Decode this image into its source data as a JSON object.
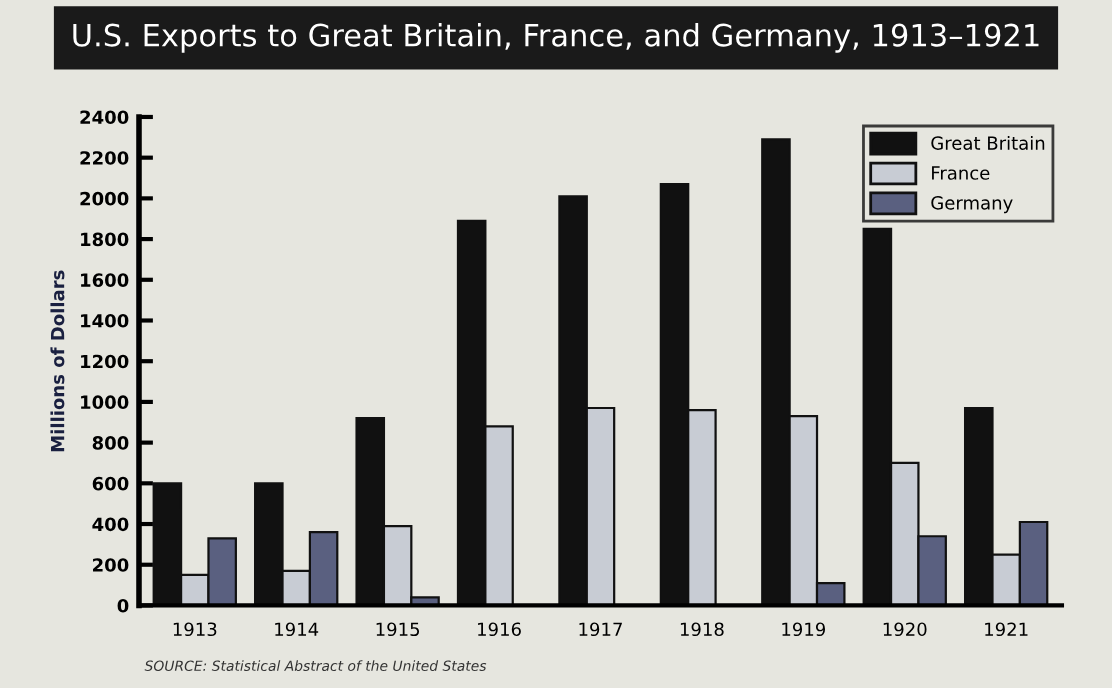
{
  "chart_data": {
    "type": "bar",
    "title": "U.S. Exports to Great Britain, France, and Germany, 1913–1921",
    "ylabel": "Millions of Dollars",
    "categories": [
      "1913",
      "1914",
      "1915",
      "1916",
      "1917",
      "1918",
      "1919",
      "1920",
      "1921"
    ],
    "series": [
      {
        "name": "Great Britain",
        "color": "#111111",
        "values": [
          600,
          600,
          920,
          1890,
          2010,
          2070,
          2290,
          1850,
          970
        ]
      },
      {
        "name": "France",
        "color": "#c8ccd4",
        "values": [
          150,
          170,
          390,
          880,
          970,
          960,
          930,
          700,
          250
        ]
      },
      {
        "name": "Germany",
        "color": "#5a6080",
        "values": [
          330,
          360,
          40,
          null,
          null,
          null,
          110,
          340,
          410
        ]
      }
    ],
    "ylim": [
      0,
      2400
    ],
    "yticks": [
      0,
      200,
      400,
      600,
      800,
      1000,
      1200,
      1400,
      1600,
      1800,
      2000,
      2200,
      2400
    ],
    "grid": false,
    "legend": "top right",
    "annotations": [
      "SOURCE: Statistical Abstract of the United States"
    ]
  }
}
